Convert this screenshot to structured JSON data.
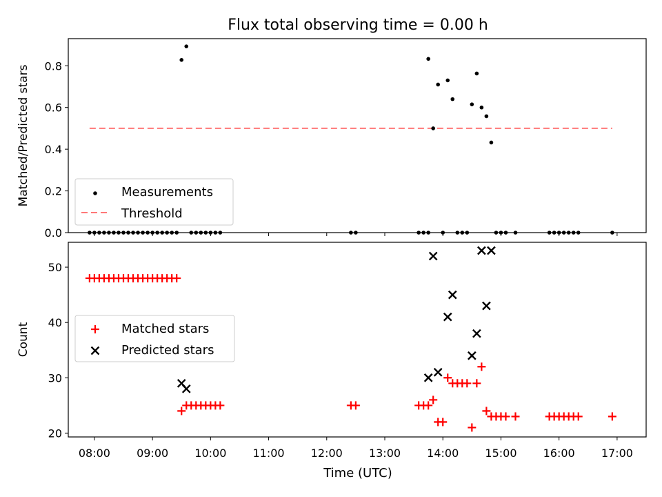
{
  "figure": {
    "title": "Flux total observing time = 0.00 h",
    "xlabel": "Time (UTC)",
    "xticks": [
      "08:00",
      "09:00",
      "10:00",
      "11:00",
      "12:00",
      "13:00",
      "14:00",
      "15:00",
      "16:00",
      "17:00"
    ],
    "xtick_hours": [
      8,
      9,
      10,
      11,
      12,
      13,
      14,
      15,
      16,
      17
    ]
  },
  "chart_data": [
    {
      "type": "scatter",
      "ylabel": "Matched/Predicted stars",
      "xlim": [
        "07:33",
        "17:30"
      ],
      "ylim": [
        0,
        0.93
      ],
      "yticks": [
        0.0,
        0.2,
        0.4,
        0.6,
        0.8
      ],
      "ytick_labels": [
        "0.0",
        "0.2",
        "0.4",
        "0.6",
        "0.8"
      ],
      "legend_position": "lower-left",
      "legend": [
        "Measurements",
        "Threshold"
      ],
      "series": [
        {
          "name": "Measurements",
          "color": "#000000",
          "marker": "dot",
          "points": [
            [
              "07:55",
              0
            ],
            [
              "08:00",
              0
            ],
            [
              "08:05",
              0
            ],
            [
              "08:10",
              0
            ],
            [
              "08:15",
              0
            ],
            [
              "08:20",
              0
            ],
            [
              "08:25",
              0
            ],
            [
              "08:30",
              0
            ],
            [
              "08:35",
              0
            ],
            [
              "08:40",
              0
            ],
            [
              "08:45",
              0
            ],
            [
              "08:50",
              0
            ],
            [
              "08:55",
              0
            ],
            [
              "09:00",
              0
            ],
            [
              "09:05",
              0
            ],
            [
              "09:10",
              0
            ],
            [
              "09:15",
              0
            ],
            [
              "09:20",
              0
            ],
            [
              "09:25",
              0
            ],
            [
              "09:30",
              0.828
            ],
            [
              "09:35",
              0.893
            ],
            [
              "09:40",
              0
            ],
            [
              "09:45",
              0
            ],
            [
              "09:50",
              0
            ],
            [
              "09:55",
              0
            ],
            [
              "10:00",
              0
            ],
            [
              "10:05",
              0
            ],
            [
              "10:10",
              0
            ],
            [
              "12:25",
              0
            ],
            [
              "12:30",
              0
            ],
            [
              "13:35",
              0
            ],
            [
              "13:40",
              0
            ],
            [
              "13:45",
              0
            ],
            [
              "13:45",
              0.833
            ],
            [
              "13:50",
              0.5
            ],
            [
              "13:55",
              0.71
            ],
            [
              "14:00",
              0
            ],
            [
              "14:05",
              0.73
            ],
            [
              "14:10",
              0.64
            ],
            [
              "14:15",
              0
            ],
            [
              "14:20",
              0
            ],
            [
              "14:25",
              0
            ],
            [
              "14:30",
              0.615
            ],
            [
              "14:35",
              0.763
            ],
            [
              "14:40",
              0.6
            ],
            [
              "14:45",
              0.558
            ],
            [
              "14:50",
              0.432
            ],
            [
              "14:55",
              0
            ],
            [
              "15:00",
              0
            ],
            [
              "15:05",
              0
            ],
            [
              "15:15",
              0
            ],
            [
              "15:50",
              0
            ],
            [
              "15:55",
              0
            ],
            [
              "16:00",
              0
            ],
            [
              "16:05",
              0
            ],
            [
              "16:10",
              0
            ],
            [
              "16:15",
              0
            ],
            [
              "16:20",
              0
            ],
            [
              "16:55",
              0
            ]
          ]
        },
        {
          "name": "Threshold",
          "color": "#ff7777",
          "style": "dashed",
          "x": [
            "07:55",
            "16:55"
          ],
          "y": [
            0.5,
            0.5
          ]
        }
      ]
    },
    {
      "type": "scatter",
      "ylabel": "Count",
      "xlim": [
        "07:33",
        "17:30"
      ],
      "ylim": [
        19.3,
        54.5
      ],
      "yticks": [
        20,
        30,
        40,
        50
      ],
      "ytick_labels": [
        "20",
        "30",
        "40",
        "50"
      ],
      "legend_position": "center-left",
      "legend": [
        "Matched stars",
        "Predicted stars"
      ],
      "series": [
        {
          "name": "Matched stars",
          "color": "#ff0000",
          "marker": "plus",
          "points": [
            [
              "07:55",
              48
            ],
            [
              "08:00",
              48
            ],
            [
              "08:05",
              48
            ],
            [
              "08:10",
              48
            ],
            [
              "08:15",
              48
            ],
            [
              "08:20",
              48
            ],
            [
              "08:25",
              48
            ],
            [
              "08:30",
              48
            ],
            [
              "08:35",
              48
            ],
            [
              "08:40",
              48
            ],
            [
              "08:45",
              48
            ],
            [
              "08:50",
              48
            ],
            [
              "08:55",
              48
            ],
            [
              "09:00",
              48
            ],
            [
              "09:05",
              48
            ],
            [
              "09:10",
              48
            ],
            [
              "09:15",
              48
            ],
            [
              "09:20",
              48
            ],
            [
              "09:25",
              48
            ],
            [
              "09:30",
              24
            ],
            [
              "09:35",
              25
            ],
            [
              "09:40",
              25
            ],
            [
              "09:45",
              25
            ],
            [
              "09:50",
              25
            ],
            [
              "09:55",
              25
            ],
            [
              "10:00",
              25
            ],
            [
              "10:05",
              25
            ],
            [
              "10:10",
              25
            ],
            [
              "12:25",
              25
            ],
            [
              "12:30",
              25
            ],
            [
              "13:35",
              25
            ],
            [
              "13:40",
              25
            ],
            [
              "13:45",
              25
            ],
            [
              "13:50",
              26
            ],
            [
              "13:55",
              22
            ],
            [
              "14:00",
              22
            ],
            [
              "14:05",
              30
            ],
            [
              "14:10",
              29
            ],
            [
              "14:15",
              29
            ],
            [
              "14:20",
              29
            ],
            [
              "14:25",
              29
            ],
            [
              "14:30",
              21
            ],
            [
              "14:35",
              29
            ],
            [
              "14:40",
              32
            ],
            [
              "14:45",
              24
            ],
            [
              "14:50",
              23
            ],
            [
              "14:55",
              23
            ],
            [
              "15:00",
              23
            ],
            [
              "15:05",
              23
            ],
            [
              "15:15",
              23
            ],
            [
              "15:50",
              23
            ],
            [
              "15:55",
              23
            ],
            [
              "16:00",
              23
            ],
            [
              "16:05",
              23
            ],
            [
              "16:10",
              23
            ],
            [
              "16:15",
              23
            ],
            [
              "16:20",
              23
            ],
            [
              "16:55",
              23
            ]
          ]
        },
        {
          "name": "Predicted stars",
          "color": "#000000",
          "marker": "x",
          "points": [
            [
              "09:30",
              29
            ],
            [
              "09:35",
              28
            ],
            [
              "13:45",
              30
            ],
            [
              "13:50",
              52
            ],
            [
              "13:55",
              31
            ],
            [
              "14:05",
              41
            ],
            [
              "14:10",
              45
            ],
            [
              "14:30",
              34
            ],
            [
              "14:35",
              38
            ],
            [
              "14:40",
              53
            ],
            [
              "14:45",
              43
            ],
            [
              "14:50",
              53
            ]
          ]
        }
      ]
    }
  ]
}
